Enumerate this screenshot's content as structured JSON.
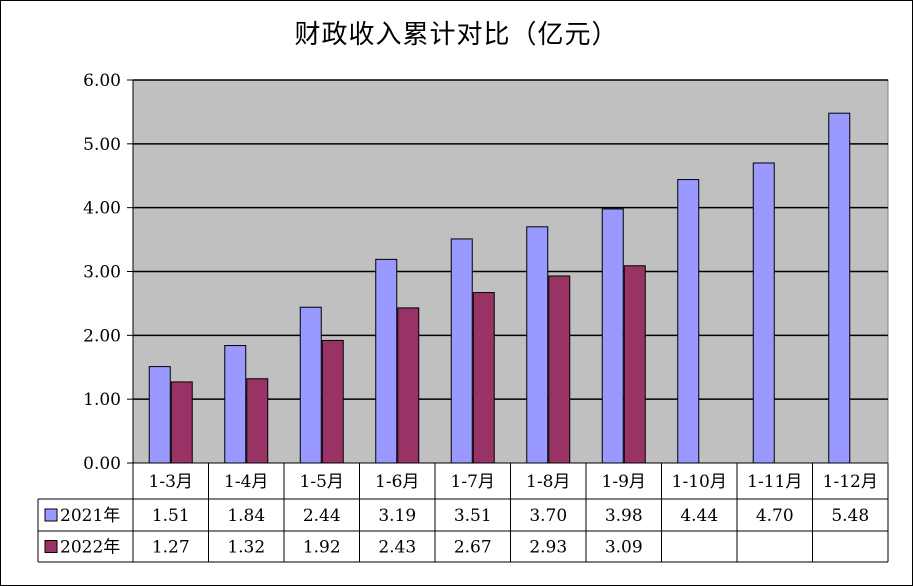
{
  "chart_data": {
    "type": "bar",
    "title": "财政收入累计对比（亿元）",
    "categories": [
      "1-3月",
      "1-4月",
      "1-5月",
      "1-6月",
      "1-7月",
      "1-8月",
      "1-9月",
      "1-10月",
      "1-11月",
      "1-12月"
    ],
    "series": [
      {
        "name": "2021年",
        "values": [
          1.51,
          1.84,
          2.44,
          3.19,
          3.51,
          3.7,
          3.98,
          4.44,
          4.7,
          5.48
        ],
        "color": "#9999ff"
      },
      {
        "name": "2022年",
        "values": [
          1.27,
          1.32,
          1.92,
          2.43,
          2.67,
          2.93,
          3.09,
          null,
          null,
          null
        ],
        "color": "#993366"
      }
    ],
    "yticks": [
      "0.00",
      "1.00",
      "2.00",
      "3.00",
      "4.00",
      "5.00",
      "6.00"
    ],
    "ylim": [
      0,
      6
    ],
    "grid": true,
    "plot_background": "#c0c0c0",
    "legend": "data-table"
  }
}
